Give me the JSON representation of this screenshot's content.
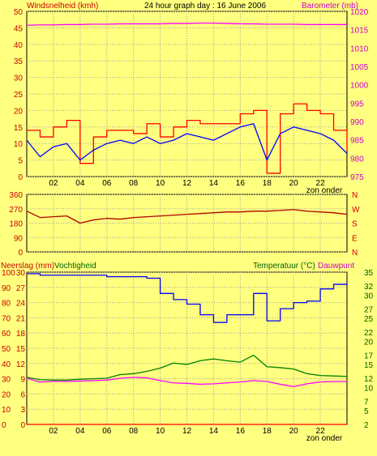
{
  "colors": {
    "background": "#ffff80",
    "plot_bg": "#ffff80",
    "grid": "#a0a0a0",
    "frame": "#000000",
    "gust": "#ff0000",
    "wind": "#0000ff",
    "barometer": "#ff00ff",
    "direction": "#b00000",
    "rain": "#ff0000",
    "humidity": "#0000ff",
    "temperature": "#008000",
    "dewpoint": "#ff00ff",
    "left_label": "#cc0000",
    "right_label": "#cc00cc",
    "temp_label": "#006000",
    "tick_text": "#000000",
    "zon_onder": "#000000"
  },
  "chart_data": [
    {
      "type": "line",
      "title": "24 hour graph day : 16 June 2006",
      "ylabel": "Windsnelheid (kmh)",
      "y2label": "Barometer (mb)",
      "xticks": [
        "02",
        "04",
        "06",
        "08",
        "10",
        "12",
        "14",
        "16",
        "18",
        "20",
        "22"
      ],
      "annotation": "zon onder",
      "ylim": [
        0,
        50
      ],
      "yticks": [
        0,
        5,
        10,
        15,
        20,
        25,
        30,
        35,
        40,
        45,
        50
      ],
      "y2lim": [
        975,
        1020
      ],
      "y2ticks": [
        975,
        980,
        985,
        990,
        995,
        1000,
        1005,
        1010,
        1015,
        1020
      ],
      "grid": true,
      "x": [
        0,
        1,
        2,
        3,
        4,
        5,
        6,
        7,
        8,
        9,
        10,
        11,
        12,
        13,
        14,
        15,
        16,
        17,
        18,
        19,
        20,
        21,
        22,
        23,
        24
      ],
      "series": [
        {
          "key": "gust",
          "axis": "left",
          "values": [
            14,
            12,
            15,
            17,
            4,
            12,
            14,
            14,
            13,
            16,
            12,
            15,
            17,
            16,
            16,
            16,
            19,
            20,
            1,
            19,
            22,
            20,
            19,
            14,
            8
          ]
        },
        {
          "key": "wind",
          "axis": "left",
          "values": [
            11,
            6,
            9,
            10,
            5,
            8,
            10,
            11,
            10,
            12,
            10,
            11,
            13,
            12,
            11,
            13,
            15,
            16,
            5,
            13,
            15,
            14,
            13,
            11,
            7
          ]
        },
        {
          "key": "barometer",
          "axis": "right",
          "values": [
            1016.2,
            1016.3,
            1016.3,
            1016.4,
            1016.4,
            1016.5,
            1016.5,
            1016.6,
            1016.6,
            1016.6,
            1016.6,
            1016.7,
            1016.7,
            1016.8,
            1016.8,
            1016.7,
            1016.6,
            1016.6,
            1016.5,
            1016.5,
            1016.5,
            1016.4,
            1016.4,
            1016.4,
            1016.4
          ]
        }
      ]
    },
    {
      "type": "line",
      "ylim": [
        0,
        360
      ],
      "yticks": [
        0,
        90,
        180,
        270,
        360
      ],
      "y2ticks": [
        "N",
        "W",
        "S",
        "E",
        "N"
      ],
      "grid": true,
      "x": [
        0,
        1,
        2,
        3,
        4,
        5,
        6,
        7,
        8,
        9,
        10,
        11,
        12,
        13,
        14,
        15,
        16,
        17,
        18,
        19,
        20,
        21,
        22,
        23,
        24
      ],
      "series": [
        {
          "key": "direction",
          "axis": "left",
          "values": [
            255,
            215,
            220,
            225,
            180,
            200,
            210,
            205,
            215,
            220,
            225,
            230,
            235,
            240,
            245,
            250,
            250,
            255,
            255,
            260,
            265,
            255,
            250,
            245,
            235
          ]
        }
      ]
    },
    {
      "type": "line",
      "ylabel": "Neerslag (mm)",
      "ylabel2": "Vochtigheid",
      "y2label": "Temperatuur (°C)",
      "y2label2": "Dauwpunt",
      "xticks": [
        "02",
        "04",
        "06",
        "08",
        "10",
        "12",
        "14",
        "16",
        "18",
        "20",
        "22"
      ],
      "annotation": "zon onder",
      "rain_ticks": [
        0,
        3,
        6,
        9,
        12,
        15,
        18,
        21,
        24,
        27,
        30
      ],
      "humidity_ticks": [
        0,
        10,
        20,
        30,
        40,
        50,
        60,
        70,
        80,
        90,
        100
      ],
      "temp_ticks": [
        2,
        5,
        7,
        10,
        12,
        15,
        17,
        20,
        22,
        25,
        27,
        30,
        32,
        35
      ],
      "ylim": [
        0,
        100
      ],
      "y2lim": [
        2,
        35
      ],
      "grid": true,
      "x": [
        0,
        1,
        2,
        3,
        4,
        5,
        6,
        7,
        8,
        9,
        10,
        11,
        12,
        13,
        14,
        15,
        16,
        17,
        18,
        19,
        20,
        21,
        22,
        23,
        24
      ],
      "series": [
        {
          "key": "rain",
          "axis": "left",
          "values": [
            0,
            0,
            0,
            0,
            0,
            0,
            0,
            0,
            0,
            0,
            0,
            0,
            0,
            0,
            0,
            0,
            0,
            0,
            0,
            0,
            0,
            0,
            0,
            0,
            0
          ]
        },
        {
          "key": "humidity",
          "axis": "left",
          "values": [
            99,
            98,
            98,
            98,
            98,
            98,
            97,
            97,
            97,
            96,
            86,
            82,
            79,
            72,
            67,
            72,
            72,
            86,
            68,
            76,
            80,
            81,
            89,
            92,
            93
          ]
        },
        {
          "key": "temperature",
          "axis": "right",
          "values": [
            12.2,
            11.7,
            11.6,
            11.6,
            11.8,
            11.9,
            12.0,
            12.8,
            13.0,
            13.5,
            14.2,
            15.3,
            15.0,
            15.8,
            16.2,
            15.8,
            15.5,
            17.0,
            14.5,
            14.3,
            14.0,
            13.0,
            12.6,
            12.5,
            12.4
          ]
        },
        {
          "key": "dewpoint",
          "axis": "right",
          "values": [
            12.0,
            11.2,
            11.3,
            11.3,
            11.4,
            11.5,
            11.6,
            12.0,
            12.2,
            12.1,
            11.5,
            11.0,
            10.9,
            10.7,
            10.8,
            11.0,
            11.2,
            11.5,
            11.3,
            10.7,
            10.2,
            10.8,
            11.2,
            11.3,
            11.3
          ]
        }
      ]
    }
  ]
}
